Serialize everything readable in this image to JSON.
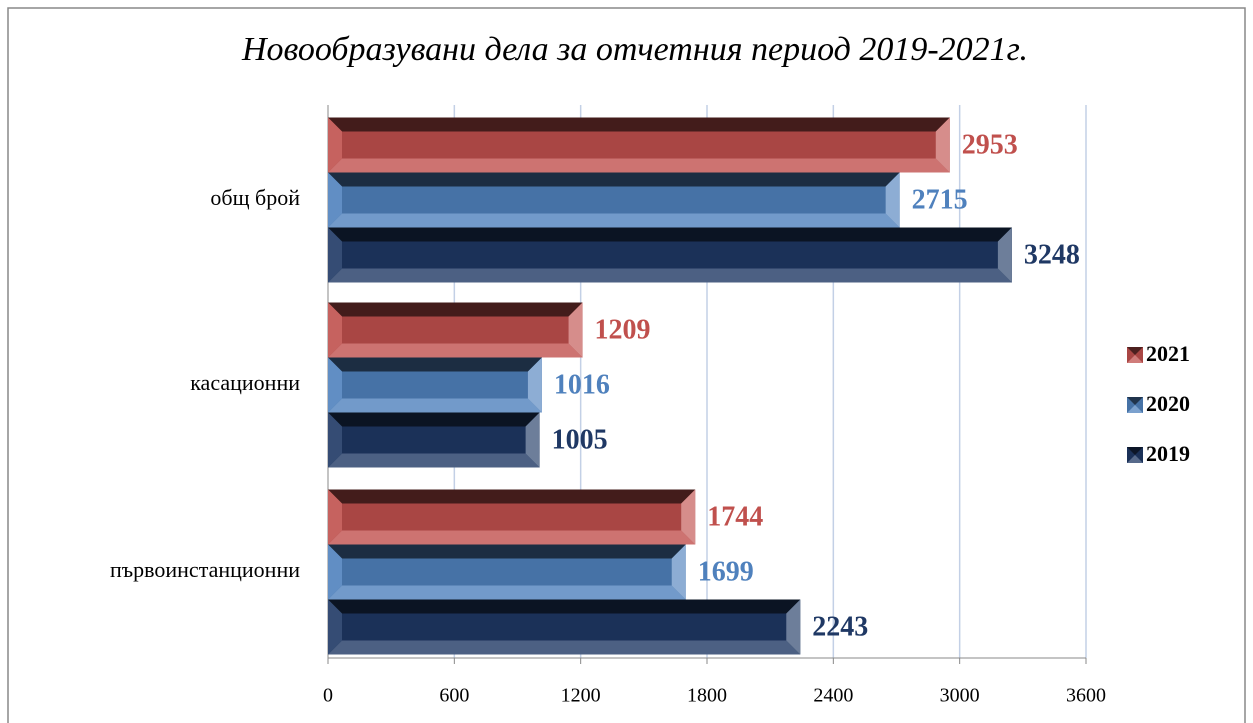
{
  "chart_data": {
    "type": "bar",
    "orientation": "horizontal",
    "title": "Новообразувани дела за отчетния период 2019-2021г.",
    "categories": [
      "общ брой",
      "касационни",
      "първоинстанционни"
    ],
    "series": [
      {
        "name": "2021",
        "color": "#c0504d",
        "values": [
          2953,
          1209,
          1744
        ]
      },
      {
        "name": "2020",
        "color": "#4f81bd",
        "values": [
          2715,
          1016,
          1699
        ]
      },
      {
        "name": "2019",
        "color": "#1f3864",
        "values": [
          3248,
          1005,
          2243
        ]
      }
    ],
    "xlim": [
      0,
      3600
    ],
    "xticks": [
      0,
      600,
      1200,
      1800,
      2400,
      3000,
      3600
    ],
    "grid": true,
    "legend": "right"
  }
}
